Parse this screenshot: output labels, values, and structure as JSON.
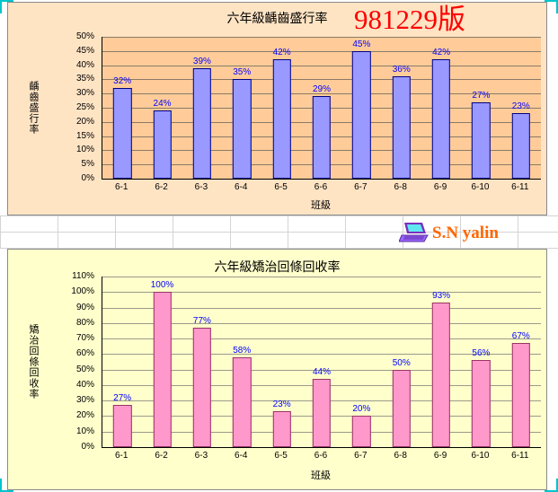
{
  "page": {
    "version_label": "981229版",
    "logo_text": "S.N yalin"
  },
  "chart_data": [
    {
      "type": "bar",
      "title": "六年級齲齒盛行率",
      "xlabel": "班級",
      "ylabel": "齲齒盛行率",
      "categories": [
        "6-1",
        "6-2",
        "6-3",
        "6-4",
        "6-5",
        "6-6",
        "6-7",
        "6-8",
        "6-9",
        "6-10",
        "6-11"
      ],
      "values": [
        32,
        24,
        39,
        35,
        42,
        29,
        45,
        36,
        42,
        27,
        23
      ],
      "labels": [
        "32%",
        "24%",
        "39%",
        "35%",
        "42%",
        "29%",
        "45%",
        "36%",
        "42%",
        "27%",
        "23%"
      ],
      "ylim": [
        0,
        50
      ],
      "ystep": 5,
      "y_ticks": [
        "0%",
        "5%",
        "10%",
        "15%",
        "20%",
        "25%",
        "30%",
        "35%",
        "40%",
        "45%",
        "50%"
      ],
      "grid": "on",
      "legend": "none",
      "chart_bg": "#FFE4C4",
      "plot_bg": "#FFCC99",
      "bar_color": "#9999FF",
      "bar_border": "#000080",
      "label_color": "#0000FF",
      "grid_color": "#8a7a66"
    },
    {
      "type": "bar",
      "title": "六年級矯治回條回收率",
      "xlabel": "班級",
      "ylabel": "矯治回條回收率",
      "categories": [
        "6-1",
        "6-2",
        "6-3",
        "6-4",
        "6-5",
        "6-6",
        "6-7",
        "6-8",
        "6-9",
        "6-10",
        "6-11"
      ],
      "values": [
        27,
        100,
        77,
        58,
        23,
        44,
        20,
        50,
        93,
        56,
        67
      ],
      "labels": [
        "27%",
        "100%",
        "77%",
        "58%",
        "23%",
        "44%",
        "20%",
        "50%",
        "93%",
        "56%",
        "67%"
      ],
      "ylim": [
        0,
        110
      ],
      "ystep": 10,
      "y_ticks": [
        "0%",
        "10%",
        "20%",
        "30%",
        "40%",
        "50%",
        "60%",
        "70%",
        "80%",
        "90%",
        "100%",
        "110%"
      ],
      "grid": "on",
      "legend": "none",
      "chart_bg": "#FFFFCC",
      "plot_bg": "#FFFFCC",
      "bar_color": "#FF99CC",
      "bar_border": "#993366",
      "label_color": "#0000FF",
      "grid_color": "#9a9a8a"
    }
  ]
}
